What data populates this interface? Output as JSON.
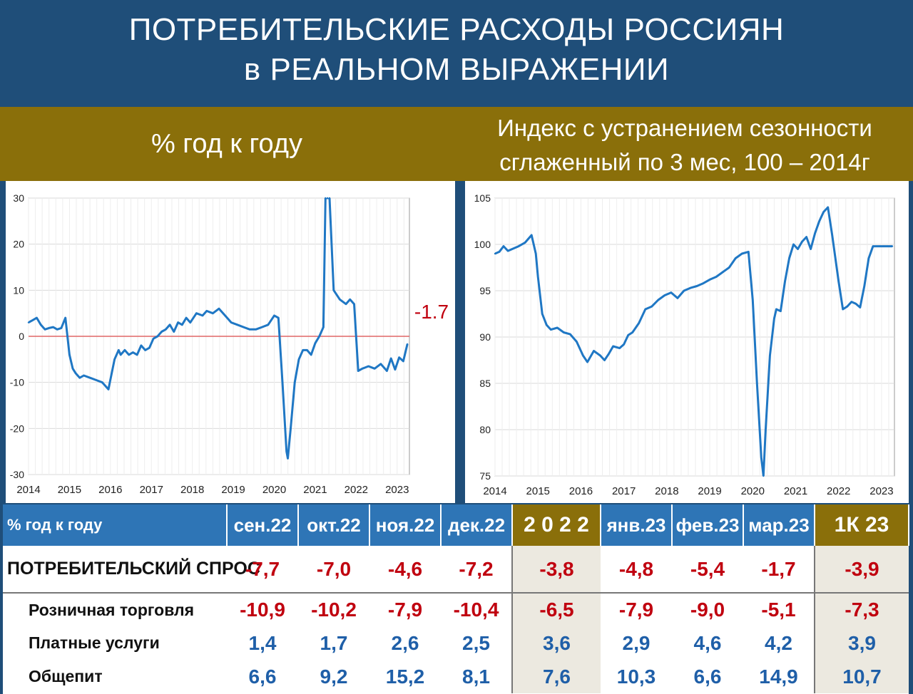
{
  "title": {
    "line1": "ПОТРЕБИТЕЛЬСКИЕ РАСХОДЫ РОССИЯН",
    "line2": "в РЕАЛЬНОМ ВЫРАЖЕНИИ"
  },
  "subtitle_left": "% год к году",
  "subtitle_right": {
    "line1": "Индекс с устранением сезонности",
    "line2": "сглаженный по 3 мес, 100 – 2014г"
  },
  "colors": {
    "line": "#1f77c4",
    "zero_line": "#e06666",
    "header_blue": "#2e75b6",
    "header_gold": "#8a6f0a",
    "negative": "#c0000f",
    "positive": "#1f5fa8"
  },
  "chart_data": [
    {
      "type": "line",
      "annotation": "-1.7",
      "ylim": [
        -30,
        30
      ],
      "yticks": [
        30,
        20,
        10,
        0,
        -10,
        -20,
        -30
      ],
      "x_ticks": [
        "2014",
        "2015",
        "2016",
        "2017",
        "2018",
        "2019",
        "2020",
        "2021",
        "2022",
        "2023"
      ],
      "reference_line": 0,
      "grid": true,
      "x": [
        2014.0,
        2014.1,
        2014.2,
        2014.3,
        2014.4,
        2014.5,
        2014.6,
        2014.7,
        2014.8,
        2014.9,
        2015.0,
        2015.08,
        2015.15,
        2015.25,
        2015.35,
        2015.5,
        2015.65,
        2015.8,
        2015.95,
        2016.1,
        2016.2,
        2016.25,
        2016.35,
        2016.45,
        2016.55,
        2016.65,
        2016.75,
        2016.85,
        2016.95,
        2017.05,
        2017.15,
        2017.25,
        2017.35,
        2017.45,
        2017.55,
        2017.65,
        2017.75,
        2017.85,
        2017.95,
        2018.1,
        2018.25,
        2018.35,
        2018.5,
        2018.65,
        2018.8,
        2018.95,
        2019.1,
        2019.25,
        2019.4,
        2019.55,
        2019.7,
        2019.85,
        2020.0,
        2020.1,
        2020.2,
        2020.3,
        2020.33,
        2020.4,
        2020.5,
        2020.6,
        2020.7,
        2020.8,
        2020.9,
        2021.0,
        2021.1,
        2021.2,
        2021.25,
        2021.3,
        2021.35,
        2021.45,
        2021.6,
        2021.75,
        2021.85,
        2021.95,
        2022.05,
        2022.15,
        2022.3,
        2022.45,
        2022.6,
        2022.75,
        2022.85,
        2022.95,
        2023.05,
        2023.15,
        2023.25
      ],
      "y": [
        3,
        3.5,
        4,
        2.5,
        1.5,
        1.8,
        2,
        1.5,
        1.8,
        4,
        -4,
        -7,
        -8,
        -9,
        -8.5,
        -9,
        -9.5,
        -10,
        -11.5,
        -5,
        -3,
        -4,
        -3,
        -4,
        -3.5,
        -4,
        -2,
        -3,
        -2.5,
        -0.5,
        0,
        1,
        1.5,
        2.5,
        1,
        3,
        2.5,
        4,
        3,
        5,
        4.5,
        5.5,
        5,
        6,
        4.5,
        3,
        2.5,
        2,
        1.5,
        1.5,
        2,
        2.5,
        4.5,
        4,
        -10,
        -25,
        -26.5,
        -20,
        -10,
        -5,
        -3,
        -3,
        -4,
        -1.5,
        0,
        2,
        30,
        30,
        30,
        10,
        8,
        7,
        8,
        7,
        -7.5,
        -7,
        -6.5,
        -7,
        -6,
        -7.5,
        -4.8,
        -7.2,
        -4.6,
        -5.4,
        -1.7
      ]
    },
    {
      "type": "line",
      "ylim": [
        75,
        105
      ],
      "yticks": [
        105,
        100,
        95,
        90,
        85,
        80,
        75
      ],
      "x_ticks": [
        "2014",
        "2015",
        "2016",
        "2017",
        "2018",
        "2019",
        "2020",
        "2021",
        "2022",
        "2023"
      ],
      "grid": true,
      "x": [
        2014.0,
        2014.1,
        2014.2,
        2014.3,
        2014.4,
        2014.55,
        2014.7,
        2014.85,
        2014.95,
        2015.0,
        2015.1,
        2015.2,
        2015.3,
        2015.45,
        2015.6,
        2015.75,
        2015.9,
        2016.05,
        2016.15,
        2016.3,
        2016.45,
        2016.55,
        2016.65,
        2016.75,
        2016.9,
        2017.0,
        2017.1,
        2017.2,
        2017.35,
        2017.5,
        2017.65,
        2017.8,
        2017.95,
        2018.1,
        2018.25,
        2018.4,
        2018.55,
        2018.7,
        2018.85,
        2019.0,
        2019.15,
        2019.3,
        2019.45,
        2019.6,
        2019.75,
        2019.9,
        2020.0,
        2020.1,
        2020.2,
        2020.25,
        2020.3,
        2020.4,
        2020.5,
        2020.55,
        2020.65,
        2020.75,
        2020.85,
        2020.95,
        2021.05,
        2021.15,
        2021.25,
        2021.35,
        2021.45,
        2021.55,
        2021.65,
        2021.75,
        2021.85,
        2022.0,
        2022.1,
        2022.2,
        2022.3,
        2022.4,
        2022.5,
        2022.6,
        2022.7,
        2022.8,
        2022.95,
        2023.05,
        2023.15,
        2023.25
      ],
      "y": [
        99,
        99.2,
        99.8,
        99.3,
        99.5,
        99.8,
        100.2,
        101,
        99,
        96.5,
        92.5,
        91.3,
        90.8,
        91,
        90.5,
        90.3,
        89.5,
        88,
        87.3,
        88.5,
        88,
        87.5,
        88.2,
        89,
        88.8,
        89.2,
        90.2,
        90.5,
        91.5,
        93,
        93.3,
        94,
        94.5,
        94.8,
        94.2,
        95,
        95.3,
        95.5,
        95.8,
        96.2,
        96.5,
        97,
        97.5,
        98.5,
        99,
        99.2,
        94,
        85,
        77,
        75,
        80,
        88,
        92,
        93,
        92.8,
        96,
        98.5,
        100,
        99.5,
        100.3,
        100.8,
        99.5,
        101.2,
        102.5,
        103.5,
        104,
        101,
        96,
        93,
        93.3,
        93.8,
        93.6,
        93.2,
        95.5,
        98.5,
        99.8,
        99.8,
        99.8,
        99.8,
        99.8
      ]
    },
    {
      "type": "table",
      "header_label": "% год к году",
      "columns": [
        "сен.22",
        "окт.22",
        "ноя.22",
        "дек.22",
        "2 0 2 2",
        "янв.23",
        "фев.23",
        "мар.23",
        "1К 23"
      ],
      "rows": [
        {
          "label": "ПОТРЕБИТЕЛЬСКИЙ СПРОС",
          "values": [
            "-7,7",
            "-7,0",
            "-4,6",
            "-7,2",
            "-3,8",
            "-4,8",
            "-5,4",
            "-1,7",
            "-3,9"
          ]
        },
        {
          "label": "Розничная торговля",
          "values": [
            "-10,9",
            "-10,2",
            "-7,9",
            "-10,4",
            "-6,5",
            "-7,9",
            "-9,0",
            "-5,1",
            "-7,3"
          ]
        },
        {
          "label": "Платные услуги",
          "values": [
            "1,4",
            "1,7",
            "2,6",
            "2,5",
            "3,6",
            "2,9",
            "4,6",
            "4,2",
            "3,9"
          ]
        },
        {
          "label": "Общепит",
          "values": [
            "6,6",
            "9,2",
            "15,2",
            "8,1",
            "7,6",
            "10,3",
            "6,6",
            "14,9",
            "10,7"
          ]
        }
      ]
    }
  ]
}
